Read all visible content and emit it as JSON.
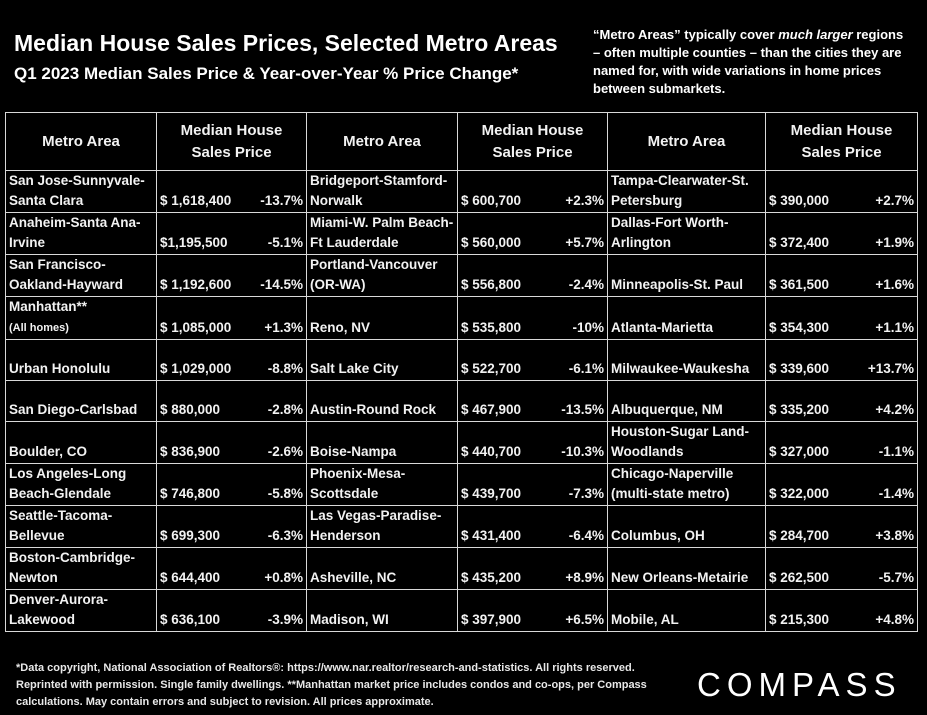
{
  "title": "Median House Sales Prices, Selected Metro Areas",
  "subtitle": "Q1 2023 Median Sales Price & Year-over-Year % Price Change*",
  "note": {
    "part1": "“Metro Areas” typically cover ",
    "emph": "much larger",
    "part2": " regions – often multiple counties – than the cities they are named for, with wide variations in home prices between submarkets."
  },
  "headers": {
    "area": "Metro Area",
    "price": "Median House Sales Price"
  },
  "columns": [
    [
      {
        "area": "San Jose-Sunnyvale-Santa Clara",
        "price": "$ 1,618,400",
        "change": "-13.7%"
      },
      {
        "area": "Anaheim-Santa Ana-Irvine",
        "price": "$1,195,500",
        "change": "-5.1%"
      },
      {
        "area": "San Francisco-Oakland-Hayward",
        "price": "$ 1,192,600",
        "change": "-14.5%"
      },
      {
        "area": "Manhattan**",
        "area_note": "(All homes)",
        "price": "$ 1,085,000",
        "change": "+1.3%"
      },
      {
        "area": "Urban Honolulu",
        "price": "$ 1,029,000",
        "change": "-8.8%"
      },
      {
        "area": "San Diego-Carlsbad",
        "price": "$ 880,000",
        "change": "-2.8%"
      },
      {
        "area": "Boulder, CO",
        "price": "$ 836,900",
        "change": "-2.6%"
      },
      {
        "area": "Los Angeles-Long Beach-Glendale",
        "price": "$ 746,800",
        "change": "-5.8%"
      },
      {
        "area": "Seattle-Tacoma-Bellevue",
        "price": "$ 699,300",
        "change": "-6.3%"
      },
      {
        "area": "Boston-Cambridge-Newton",
        "price": "$ 644,400",
        "change": "+0.8%"
      },
      {
        "area": "Denver-Aurora-Lakewood",
        "price": "$ 636,100",
        "change": "-3.9%"
      }
    ],
    [
      {
        "area": "Bridgeport-Stamford-Norwalk",
        "price": "$ 600,700",
        "change": "+2.3%"
      },
      {
        "area": "Miami-W. Palm Beach-Ft Lauderdale",
        "price": "$ 560,000",
        "change": "+5.7%"
      },
      {
        "area": "Portland-Vancouver (OR-WA)",
        "price": "$ 556,800",
        "change": "-2.4%"
      },
      {
        "area": "Reno, NV",
        "price": "$ 535,800",
        "change": "-10%"
      },
      {
        "area": "Salt Lake City",
        "price": "$ 522,700",
        "change": "-6.1%"
      },
      {
        "area": "Austin-Round Rock",
        "price": "$ 467,900",
        "change": "-13.5%"
      },
      {
        "area": "Boise-Nampa",
        "price": "$ 440,700",
        "change": "-10.3%"
      },
      {
        "area": "Phoenix-Mesa-Scottsdale",
        "price": "$ 439,700",
        "change": "-7.3%"
      },
      {
        "area": "Las Vegas-Paradise-Henderson",
        "price": "$ 431,400",
        "change": "-6.4%"
      },
      {
        "area": "Asheville, NC",
        "price": "$ 435,200",
        "change": "+8.9%"
      },
      {
        "area": "Madison, WI",
        "price": "$ 397,900",
        "change": "+6.5%"
      }
    ],
    [
      {
        "area": "Tampa-Clearwater-St. Petersburg",
        "price": "$ 390,000",
        "change": "+2.7%"
      },
      {
        "area": "Dallas-Fort Worth-Arlington",
        "price": "$ 372,400",
        "change": "+1.9%"
      },
      {
        "area": "Minneapolis-St. Paul",
        "price": "$ 361,500",
        "change": "+1.6%"
      },
      {
        "area": "Atlanta-Marietta",
        "price": "$ 354,300",
        "change": "+1.1%"
      },
      {
        "area": "Milwaukee-Waukesha",
        "price": "$ 339,600",
        "change": "+13.7%"
      },
      {
        "area": "Albuquerque, NM",
        "price": "$ 335,200",
        "change": "+4.2%"
      },
      {
        "area": "Houston-Sugar Land-Woodlands",
        "price": "$ 327,000",
        "change": "-1.1%"
      },
      {
        "area": "Chicago-Naperville (multi-state metro)",
        "price": "$ 322,000",
        "change": "-1.4%"
      },
      {
        "area": "Columbus, OH",
        "price": "$ 284,700",
        "change": "+3.8%"
      },
      {
        "area": "New Orleans-Metairie",
        "price": "$ 262,500",
        "change": "-5.7%"
      },
      {
        "area": "Mobile, AL",
        "price": "$ 215,300",
        "change": "+4.8%"
      }
    ]
  ],
  "footer": "*Data copyright, National Association of Realtors®: https://www.nar.realtor/research-and-statistics. All rights reserved. Reprinted with permission. Single family dwellings. **Manhattan market price includes condos and co-ops, per Compass calculations. May contain errors and subject to revision. All prices approximate.",
  "logo": "COMPASS",
  "colors": {
    "background": "#000000",
    "header_accent": "#b7e3a1",
    "text": "#f2f2f2"
  }
}
